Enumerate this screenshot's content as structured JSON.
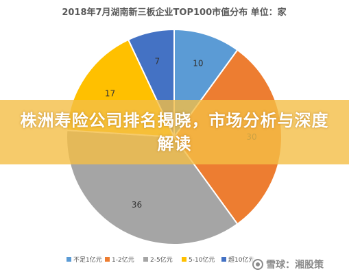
{
  "chart_data": {
    "type": "pie",
    "title": "2018年7月湖南新三板企业TOP100市值分布  单位：家",
    "categories": [
      "不足1亿元",
      "1-2亿元",
      "2-5亿元",
      "5-10亿元",
      "超10亿元"
    ],
    "values": [
      10,
      30,
      36,
      17,
      7
    ],
    "colors": [
      "#5B9BD5",
      "#ED7D31",
      "#A5A5A5",
      "#FFC000",
      "#4472C4"
    ],
    "legend_position": "bottom"
  },
  "overlay": {
    "headline": "株洲寿险公司排名揭晓，市场分析与深度解读"
  },
  "watermark": {
    "text": "雪球：湘股策"
  }
}
